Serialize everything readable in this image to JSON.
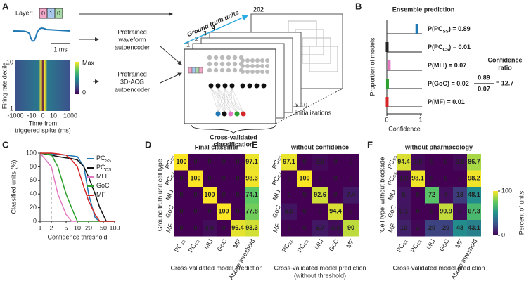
{
  "diagram": {
    "letter": "A",
    "layer_label": "Layer:",
    "layer_bits": [
      "0",
      "1",
      "0"
    ],
    "scale_bar": "1 ms",
    "waveform_encoder": [
      "Pretrained",
      "waveform",
      "autoencoder"
    ],
    "acg_encoder": [
      "Pretrained",
      "3D-ACG",
      "autoencoder"
    ],
    "acg_ylabel": "Firing rate decile",
    "acg_yticks": [
      "10",
      "1"
    ],
    "acg_colorbar": [
      "Max",
      "0"
    ],
    "acg_xticks": [
      "-1000",
      "-10",
      "0",
      "10",
      "1000"
    ],
    "acg_xlabel": [
      "Time from",
      "triggered spike (ms)"
    ],
    "stack_label": "Ground truth units",
    "unit_indices": [
      "1",
      "2",
      "3",
      "4",
      "202"
    ],
    "repeats": [
      "x 10",
      "initializations"
    ],
    "output": [
      "Cross-validated",
      "classification"
    ]
  },
  "chart_data": [
    {
      "type": "histogram",
      "letter": "B",
      "title": "Ensemble prediction",
      "ylabel": "Proportion of models",
      "xlabel": "Confidence",
      "xlim": [
        0,
        1
      ],
      "xticks": [
        0,
        1
      ],
      "series": [
        {
          "name": [
            "P(PC",
            "SS",
            ") = 0.89"
          ],
          "color": "#1f77b4",
          "value": 0.89
        },
        {
          "name": [
            "P(PC",
            "CS",
            ") = 0.01"
          ],
          "color": "#222222",
          "value": 0.01
        },
        {
          "name": [
            "P(MLI) = 0.07"
          ],
          "color": "#e377c2",
          "value": 0.07
        },
        {
          "name": [
            "P(GoC) = 0.02"
          ],
          "color": "#2ca02c",
          "value": 0.02
        },
        {
          "name": [
            "P(MF) = 0.01"
          ],
          "color": "#d62728",
          "value": 0.01
        }
      ],
      "ratio": {
        "label_lines": [
          "Confidence",
          "ratio"
        ],
        "numerator": 0.89,
        "denominator": 0.07,
        "result": "= 12.7"
      }
    },
    {
      "type": "line",
      "letter": "C",
      "ylabel": "Classified units (%)",
      "xlabel": "Confidence threshold",
      "log_x": true,
      "xlim": [
        1,
        100
      ],
      "xticks": [
        1,
        2,
        5,
        10,
        20,
        50,
        100
      ],
      "ylim": [
        0,
        100
      ],
      "yticks": [
        0,
        20,
        40,
        60,
        80,
        100
      ],
      "threshold_marker": 2,
      "x": [
        1,
        2,
        3,
        5,
        7,
        10,
        15,
        20,
        30,
        40,
        60,
        100
      ],
      "series": [
        {
          "name": [
            "PC",
            "SS"
          ],
          "color": "#1f77b4",
          "values": [
            100,
            99,
            98,
            97,
            96,
            95,
            80,
            40,
            5,
            0,
            0,
            0
          ]
        },
        {
          "name": [
            "PC",
            "CS"
          ],
          "color": "#111111",
          "values": [
            100,
            97,
            95,
            93,
            92,
            90,
            80,
            65,
            40,
            20,
            0,
            0
          ]
        },
        {
          "name": [
            "MLI"
          ],
          "color": "#e377c2",
          "values": [
            100,
            80,
            40,
            10,
            0,
            0,
            0,
            0,
            0,
            0,
            0,
            0
          ]
        },
        {
          "name": [
            "GoC"
          ],
          "color": "#2ca02c",
          "values": [
            100,
            98,
            80,
            40,
            20,
            0,
            0,
            0,
            0,
            0,
            0,
            0
          ]
        },
        {
          "name": [
            "MF"
          ],
          "color": "#d62728",
          "values": [
            100,
            100,
            99,
            97,
            90,
            80,
            50,
            30,
            10,
            0,
            0,
            0
          ]
        }
      ]
    },
    {
      "type": "heatmap",
      "letter": "D",
      "title": "Final classifier",
      "ylabel": "Ground truth unit cell type",
      "xlabel": "Cross-validated model prediction",
      "rows": [
        [
          "PC",
          "SS"
        ],
        [
          "PC",
          "CS"
        ],
        [
          "MLI"
        ],
        [
          "GoC"
        ],
        [
          "MF"
        ]
      ],
      "columns": [
        [
          "PC",
          "SS"
        ],
        [
          "PC",
          "CS"
        ],
        [
          "MLI"
        ],
        [
          "GoC"
        ],
        [
          "MF"
        ],
        [
          "Above threshold"
        ]
      ],
      "clim": [
        0,
        100
      ],
      "values": [
        [
          100,
          0,
          0,
          0,
          0,
          97.1
        ],
        [
          0,
          100,
          0,
          0,
          0,
          98.3
        ],
        [
          0,
          0,
          100,
          0,
          0,
          74.1
        ],
        [
          0,
          0,
          0,
          100,
          0,
          77.8
        ],
        [
          0,
          0,
          3.6,
          0,
          96.4,
          93.3
        ]
      ]
    },
    {
      "type": "heatmap",
      "letter": "E",
      "title": "without confidence",
      "xlabel": "Cross-validated model prediction",
      "xlabel2": "(without threshold)",
      "rows": [
        [
          "PC",
          "SS"
        ],
        [
          "PC",
          "CS"
        ],
        [
          "MLI"
        ],
        [
          "GoC"
        ],
        [
          "MF"
        ]
      ],
      "columns": [
        [
          "PC",
          "SS"
        ],
        [
          "PC",
          "CS"
        ],
        [
          "MLI"
        ],
        [
          "GoC"
        ],
        [
          "MF"
        ]
      ],
      "clim": [
        0,
        100
      ],
      "values": [
        [
          97.1,
          0,
          2.9,
          0,
          0
        ],
        [
          0,
          100,
          0,
          0,
          0
        ],
        [
          0,
          0,
          92.6,
          0,
          7.4
        ],
        [
          5.6,
          0,
          0,
          94.4,
          0
        ],
        [
          0,
          0,
          6.7,
          3.3,
          90
        ]
      ]
    },
    {
      "type": "heatmap",
      "letter": "F",
      "title": "without pharmacology",
      "ylabel": "'Cell type' without blockade",
      "xlabel": "Cross-validated model prediction",
      "rows": [
        [
          "PC",
          "SS"
        ],
        [
          "PC",
          "CS"
        ],
        [
          "MLI"
        ],
        [
          "GoC"
        ],
        [
          "MF"
        ]
      ],
      "columns": [
        [
          "PC",
          "SS"
        ],
        [
          "PC",
          "CS"
        ],
        [
          "MLI"
        ],
        [
          "GoC"
        ],
        [
          "MF"
        ],
        [
          "Above threshold"
        ]
      ],
      "clim": [
        0,
        100
      ],
      "values": [
        [
          94.4,
          2.8,
          0,
          0,
          2.8,
          86.7
        ],
        [
          1.9,
          98.1,
          0,
          0,
          0,
          98.2
        ],
        [
          6,
          0,
          72,
          4,
          18,
          48.1
        ],
        [
          6.1,
          0,
          0,
          90.9,
          3,
          67.3
        ],
        [
          10,
          2,
          20,
          20,
          48,
          43.1
        ]
      ],
      "colorbar": true,
      "colorbar_ticks": [
        0,
        100
      ],
      "colorbar_label": "Percent of units"
    }
  ]
}
